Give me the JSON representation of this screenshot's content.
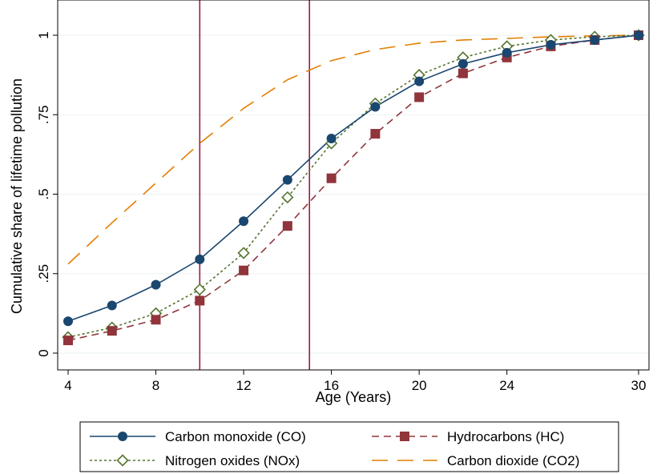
{
  "chart_data": {
    "type": "line",
    "xlabel": "Age (Years)",
    "ylabel": "Cumulative share of lifetime pollution",
    "xlim": [
      4,
      30
    ],
    "ylim": [
      0,
      1
    ],
    "x_ticks": [
      4,
      8,
      12,
      16,
      20,
      24,
      30
    ],
    "x_tick_labels": [
      "4",
      "8",
      "12",
      "16",
      "20",
      "24",
      "30"
    ],
    "y_ticks": [
      0,
      0.25,
      0.5,
      0.75,
      1
    ],
    "y_tick_labels": [
      "0",
      ".25",
      ".5",
      ".75",
      "1"
    ],
    "grid": "horizontal",
    "legend_position": "bottom",
    "vlines": [
      10,
      15
    ],
    "vline_color": "#9b1b4b",
    "series": [
      {
        "name": "Carbon monoxide (CO)",
        "color": "#1a476f",
        "marker": "circle",
        "line": "solid",
        "x": [
          4,
          6,
          8,
          10,
          12,
          14,
          16,
          18,
          20,
          22,
          24,
          26,
          28,
          30
        ],
        "y": [
          0.1,
          0.15,
          0.215,
          0.295,
          0.415,
          0.545,
          0.675,
          0.775,
          0.855,
          0.91,
          0.945,
          0.97,
          0.985,
          1.0
        ]
      },
      {
        "name": "Hydrocarbons (HC)",
        "color": "#90353b",
        "marker": "square",
        "line": "dashed",
        "x": [
          4,
          6,
          8,
          10,
          12,
          14,
          16,
          18,
          20,
          22,
          24,
          26,
          28,
          30
        ],
        "y": [
          0.04,
          0.07,
          0.105,
          0.165,
          0.26,
          0.4,
          0.55,
          0.69,
          0.805,
          0.88,
          0.93,
          0.965,
          0.985,
          1.0
        ]
      },
      {
        "name": "Nitrogen oxides (NOx)",
        "color": "#55752f",
        "marker": "diamond-hollow",
        "line": "dotted",
        "x": [
          4,
          6,
          8,
          10,
          12,
          14,
          16,
          18,
          20,
          22,
          24,
          26,
          28,
          30
        ],
        "y": [
          0.05,
          0.08,
          0.125,
          0.2,
          0.315,
          0.49,
          0.66,
          0.785,
          0.875,
          0.93,
          0.965,
          0.985,
          0.995,
          1.0
        ]
      },
      {
        "name": "Carbon dioxide (CO2)",
        "color": "#e37e00",
        "marker": "none",
        "line": "longdash",
        "x": [
          4,
          6,
          8,
          10,
          12,
          14,
          16,
          18,
          20,
          22,
          24,
          26,
          28,
          30
        ],
        "y": [
          0.28,
          0.41,
          0.535,
          0.66,
          0.77,
          0.86,
          0.92,
          0.955,
          0.975,
          0.985,
          0.99,
          0.995,
          0.998,
          1.0
        ]
      }
    ]
  }
}
